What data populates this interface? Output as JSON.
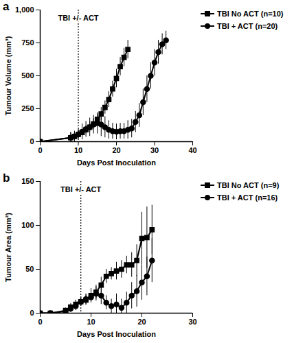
{
  "chart_data": [
    {
      "type": "line",
      "title": "a",
      "x_label": "Days Post Inoculation",
      "y_label": "Tumour Volume (mm³)",
      "xlim": [
        0,
        40
      ],
      "xticks": [
        0,
        10,
        20,
        30,
        40
      ],
      "ylim": [
        0,
        1000
      ],
      "yticks": [
        0,
        250,
        500,
        750,
        1000
      ],
      "legend": "right",
      "annotations": [
        {
          "x": 10,
          "text": "TBI +/- ACT"
        }
      ],
      "series": [
        {
          "name": "TBI No ACT (n=10)",
          "color": "#000000",
          "marker": "square",
          "x": [
            0,
            8,
            9,
            10,
            11,
            12,
            13,
            14,
            15,
            16,
            17,
            18,
            19,
            20,
            21,
            22,
            23
          ],
          "values": [
            0,
            30,
            40,
            55,
            70,
            90,
            110,
            135,
            170,
            210,
            260,
            320,
            400,
            480,
            570,
            640,
            700
          ],
          "errors": [
            0,
            40,
            30,
            30,
            30,
            30,
            40,
            40,
            40,
            50,
            50,
            60,
            60,
            70,
            70,
            70,
            70
          ]
        },
        {
          "name": "TBI + ACT (n=20)",
          "color": "#000000",
          "marker": "circle",
          "x": [
            0,
            8,
            9,
            10,
            11,
            12,
            13,
            14,
            15,
            16,
            17,
            18,
            19,
            20,
            21,
            22,
            23,
            24,
            25,
            26,
            27,
            28,
            29,
            30,
            31,
            32,
            33
          ],
          "values": [
            0,
            30,
            40,
            55,
            75,
            95,
            110,
            130,
            140,
            130,
            110,
            90,
            80,
            75,
            80,
            80,
            90,
            100,
            150,
            200,
            300,
            400,
            500,
            600,
            680,
            740,
            770
          ],
          "errors": [
            0,
            40,
            40,
            40,
            60,
            60,
            70,
            70,
            80,
            90,
            80,
            70,
            60,
            60,
            60,
            60,
            70,
            70,
            80,
            90,
            100,
            100,
            100,
            100,
            90,
            80,
            70
          ]
        }
      ]
    },
    {
      "type": "line",
      "title": "b",
      "x_label": "Days Post Inoculation",
      "y_label": "Tumour Area (mm²)",
      "xlim": [
        0,
        30
      ],
      "xticks": [
        0,
        10,
        20,
        30
      ],
      "ylim": [
        0,
        150
      ],
      "yticks": [
        0,
        50,
        100,
        150
      ],
      "legend": "right",
      "annotations": [
        {
          "x": 8,
          "text": "TBI +/- ACT"
        }
      ],
      "series": [
        {
          "name": "TBI No ACT (n=9)",
          "color": "#000000",
          "marker": "square",
          "x": [
            0,
            2,
            5,
            6,
            7,
            8,
            9,
            10,
            11,
            12,
            13,
            14,
            15,
            16,
            17,
            18,
            19,
            20,
            21,
            22
          ],
          "values": [
            0,
            0,
            3,
            7,
            10,
            13,
            15,
            20,
            24,
            32,
            42,
            45,
            48,
            50,
            55,
            55,
            60,
            85,
            86,
            95
          ],
          "errors": [
            0,
            0,
            3,
            4,
            5,
            5,
            6,
            8,
            8,
            9,
            8,
            7,
            10,
            10,
            10,
            14,
            18,
            30,
            35,
            28
          ]
        },
        {
          "name": "TBI + ACT (n=16)",
          "color": "#000000",
          "marker": "circle",
          "x": [
            0,
            2,
            5,
            6,
            7,
            8,
            9,
            10,
            11,
            12,
            13,
            14,
            15,
            16,
            17,
            18,
            19,
            20,
            21,
            22
          ],
          "values": [
            0,
            0,
            2,
            5,
            8,
            13,
            16,
            18,
            22,
            20,
            12,
            8,
            10,
            6,
            12,
            20,
            25,
            35,
            42,
            60
          ],
          "errors": [
            0,
            0,
            3,
            4,
            5,
            5,
            6,
            6,
            8,
            10,
            8,
            8,
            12,
            10,
            12,
            15,
            18,
            20,
            22,
            25
          ]
        }
      ]
    }
  ]
}
